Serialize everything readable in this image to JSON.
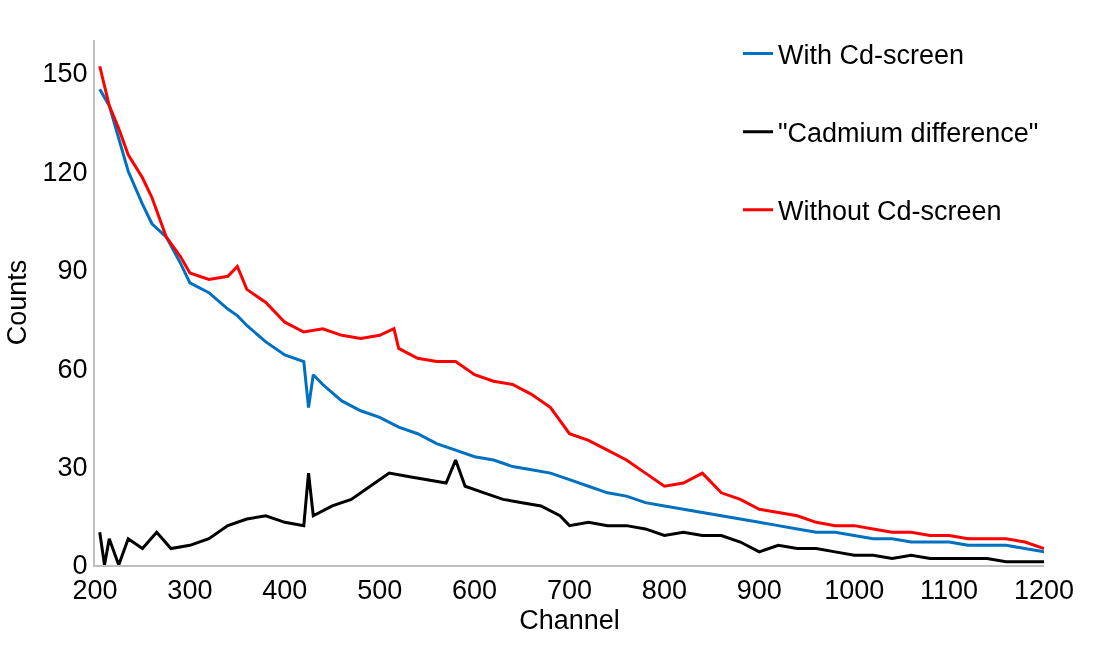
{
  "chart_data": {
    "type": "line",
    "xlabel": "Channel",
    "ylabel": "Counts",
    "xlim": [
      200,
      1200
    ],
    "xticks": [
      200,
      300,
      400,
      500,
      600,
      700,
      800,
      900,
      1000,
      1100,
      1200
    ],
    "ylim": [
      0,
      160
    ],
    "yticks": [
      0,
      30,
      60,
      90,
      120,
      150
    ],
    "legend": "top right",
    "marker": "none",
    "line_style": "solid",
    "series": [
      {
        "name": "With Cd-screen",
        "color": "#0070c0",
        "x": [
          205,
          215,
          225,
          235,
          250,
          260,
          275,
          290,
          300,
          320,
          340,
          350,
          360,
          380,
          400,
          420,
          425,
          430,
          440,
          460,
          480,
          500,
          520,
          540,
          560,
          580,
          600,
          620,
          640,
          660,
          680,
          700,
          720,
          740,
          760,
          780,
          800,
          820,
          840,
          860,
          880,
          900,
          920,
          940,
          960,
          980,
          1000,
          1020,
          1040,
          1060,
          1080,
          1100,
          1120,
          1140,
          1160,
          1180,
          1200
        ],
        "values": [
          145,
          140,
          130,
          120,
          110,
          104,
          100,
          92,
          86,
          83,
          78,
          76,
          73,
          68,
          64,
          62,
          48,
          58,
          55,
          50,
          47,
          45,
          42,
          40,
          37,
          35,
          33,
          32,
          30,
          29,
          28,
          26,
          24,
          22,
          21,
          19,
          18,
          17,
          16,
          15,
          14,
          13,
          12,
          11,
          10,
          10,
          9,
          8,
          8,
          7,
          7,
          7,
          6,
          6,
          6,
          5,
          4
        ]
      },
      {
        "name": "\"Cadmium difference\"",
        "color": "#000000",
        "x": [
          205,
          210,
          215,
          225,
          235,
          250,
          265,
          280,
          300,
          320,
          340,
          360,
          380,
          400,
          420,
          425,
          430,
          450,
          470,
          490,
          510,
          530,
          550,
          570,
          580,
          590,
          610,
          630,
          650,
          670,
          690,
          700,
          720,
          740,
          760,
          780,
          800,
          820,
          840,
          860,
          880,
          900,
          920,
          940,
          960,
          980,
          1000,
          1020,
          1040,
          1060,
          1080,
          1100,
          1120,
          1140,
          1160,
          1180,
          1200
        ],
        "values": [
          10,
          0,
          8,
          0,
          8,
          5,
          10,
          5,
          6,
          8,
          12,
          14,
          15,
          13,
          12,
          28,
          15,
          18,
          20,
          24,
          28,
          27,
          26,
          25,
          32,
          24,
          22,
          20,
          19,
          18,
          15,
          12,
          13,
          12,
          12,
          11,
          9,
          10,
          9,
          9,
          7,
          4,
          6,
          5,
          5,
          4,
          3,
          3,
          2,
          3,
          2,
          2,
          2,
          2,
          1,
          1,
          1
        ]
      },
      {
        "name": "Without Cd-screen",
        "color": "#ff0000",
        "x": [
          205,
          215,
          225,
          235,
          250,
          260,
          275,
          290,
          300,
          320,
          340,
          350,
          360,
          380,
          400,
          420,
          440,
          460,
          480,
          500,
          515,
          520,
          540,
          560,
          580,
          600,
          620,
          640,
          660,
          680,
          690,
          700,
          720,
          740,
          760,
          780,
          800,
          820,
          840,
          860,
          880,
          900,
          920,
          940,
          960,
          980,
          1000,
          1020,
          1040,
          1060,
          1080,
          1100,
          1120,
          1140,
          1160,
          1180,
          1200
        ],
        "values": [
          152,
          140,
          133,
          125,
          118,
          112,
          100,
          94,
          89,
          87,
          88,
          91,
          84,
          80,
          74,
          71,
          72,
          70,
          69,
          70,
          72,
          66,
          63,
          62,
          62,
          58,
          56,
          55,
          52,
          48,
          44,
          40,
          38,
          35,
          32,
          28,
          24,
          25,
          28,
          22,
          20,
          17,
          16,
          15,
          13,
          12,
          12,
          11,
          10,
          10,
          9,
          9,
          8,
          8,
          8,
          7,
          5
        ]
      }
    ]
  }
}
